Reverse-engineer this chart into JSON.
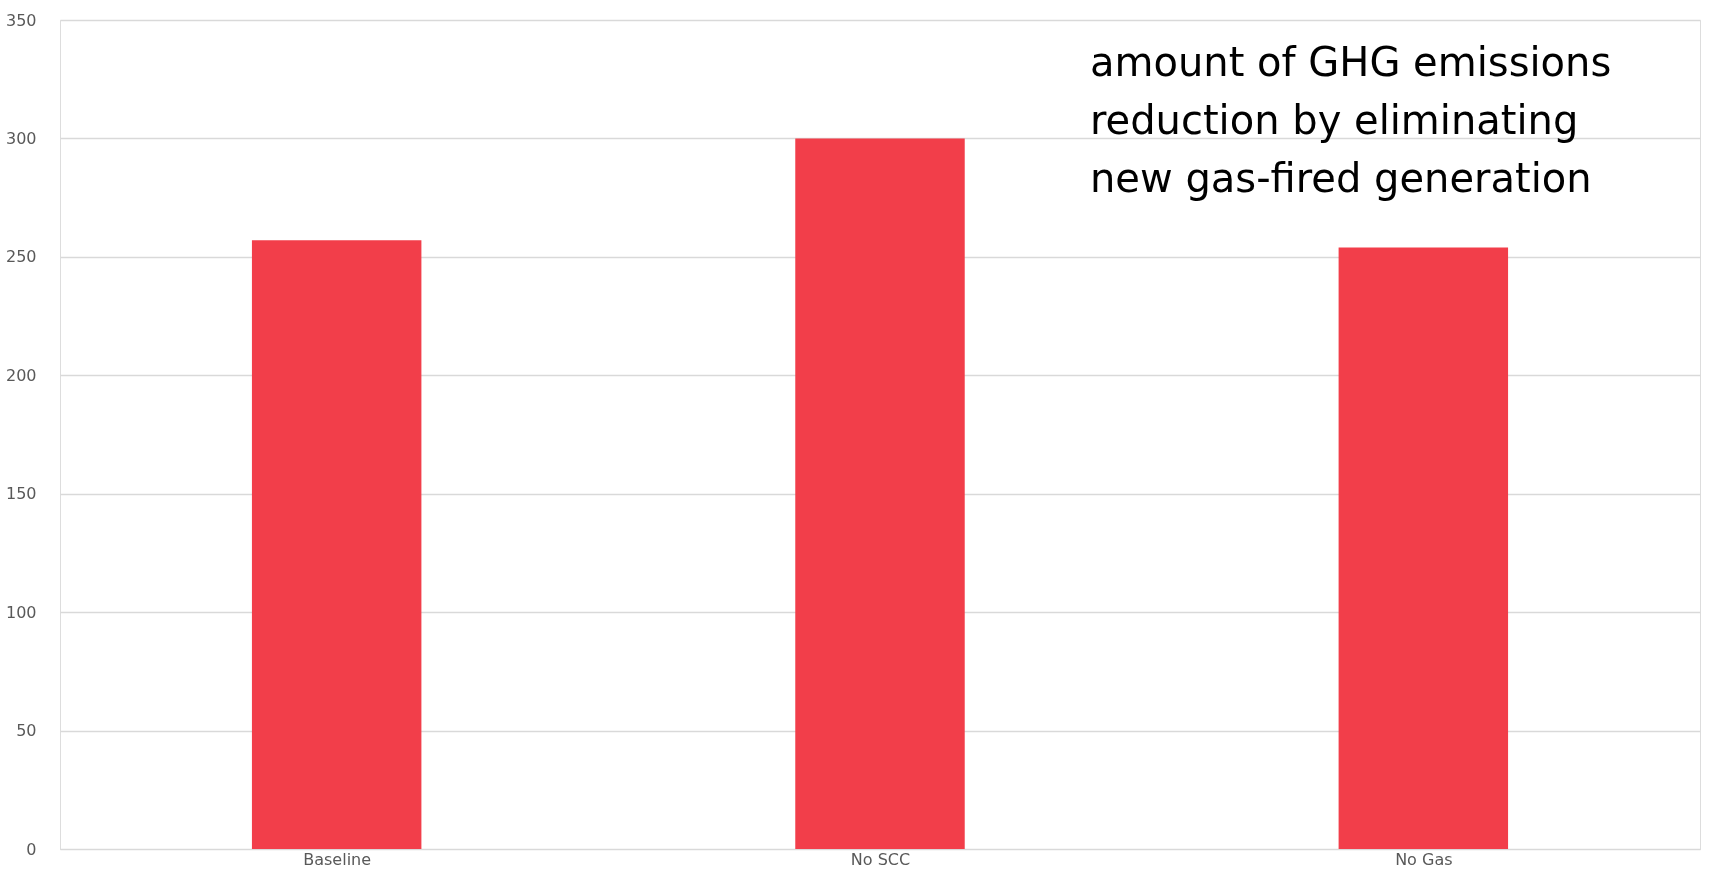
{
  "chart_data": {
    "type": "bar",
    "categories": [
      "Baseline",
      "No SCC",
      "No Gas"
    ],
    "values": [
      257,
      300,
      254
    ],
    "color": "#f23e4a",
    "ylim": [
      0,
      350
    ],
    "yticks": [
      0,
      50,
      100,
      150,
      200,
      250,
      300,
      350
    ],
    "grid": "y",
    "annotations": [
      "amount of GHG emissions\nreduction by eliminating\nnew gas-fired generation"
    ]
  }
}
